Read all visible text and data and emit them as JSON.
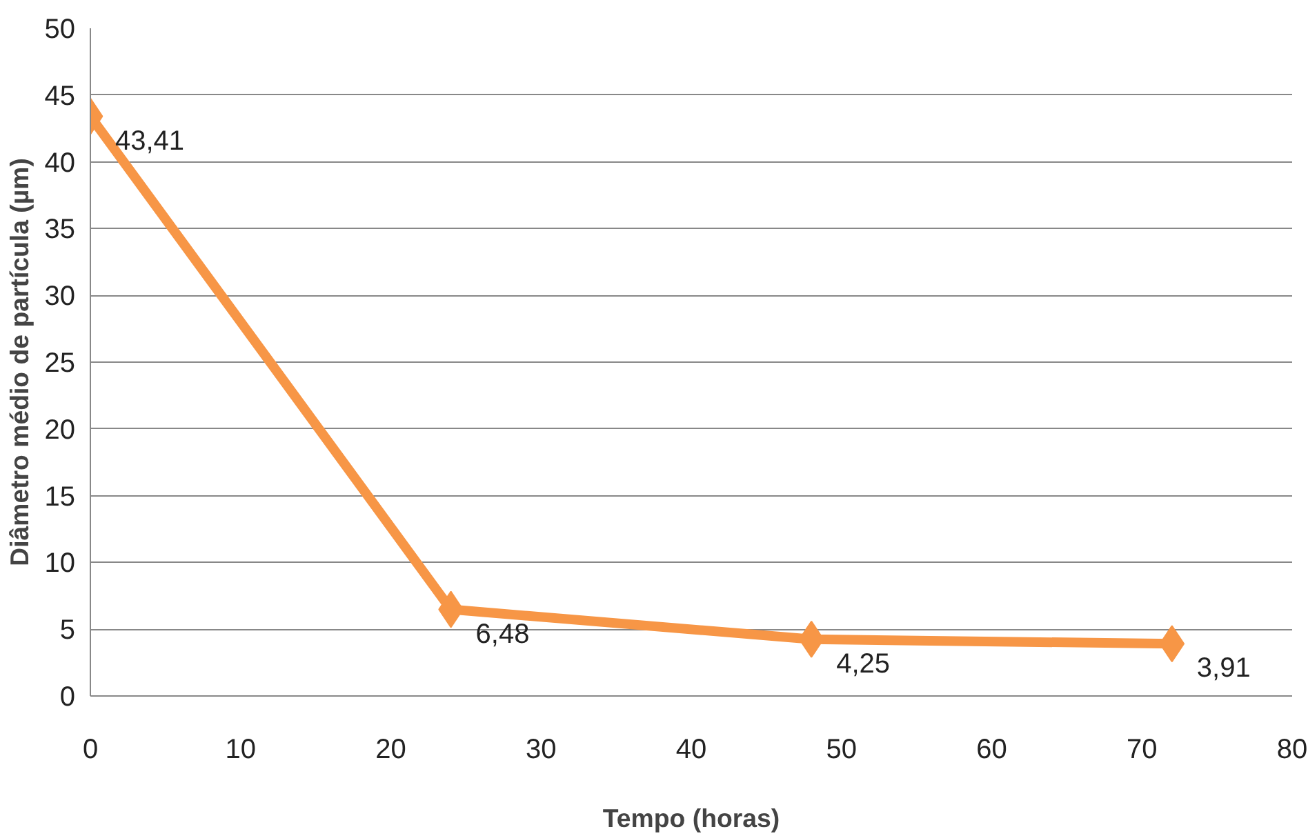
{
  "chart_data": {
    "type": "line",
    "xlabel": "Tempo (horas)",
    "ylabel": "Diâmetro médio de partícula (µm)",
    "x": [
      0,
      24,
      48,
      72
    ],
    "series": [
      {
        "color": "#f79646",
        "values": [
          43.41,
          6.48,
          4.25,
          3.91
        ],
        "value_labels": [
          "43,41",
          "6,48",
          "4,25",
          "3,91"
        ]
      }
    ],
    "xlim": [
      0,
      80
    ],
    "xticks": [
      0,
      10,
      20,
      30,
      40,
      50,
      60,
      70,
      80
    ],
    "ylim": [
      0,
      50
    ],
    "yticks": [
      0,
      5,
      10,
      15,
      20,
      25,
      30,
      35,
      40,
      45,
      50
    ],
    "grid": "y",
    "marker": "diamond",
    "line_style": "solid"
  }
}
